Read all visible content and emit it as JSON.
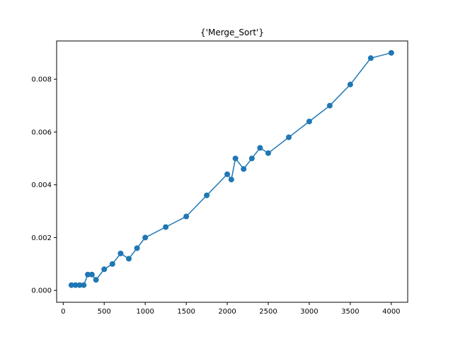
{
  "chart_data": {
    "type": "line",
    "title": "{'Merge_Sort'}",
    "xlabel": "",
    "ylabel": "",
    "xlim": [
      -80,
      4200
    ],
    "ylim": [
      -0.00045,
      0.00945
    ],
    "x_ticks": [
      0,
      500,
      1000,
      1500,
      2000,
      2500,
      3000,
      3500,
      4000
    ],
    "x_tick_labels": [
      "0",
      "500",
      "1000",
      "1500",
      "2000",
      "2500",
      "3000",
      "3500",
      "4000"
    ],
    "y_ticks": [
      0.0,
      0.002,
      0.004,
      0.006,
      0.008
    ],
    "y_tick_labels": [
      "0.000",
      "0.002",
      "0.004",
      "0.006",
      "0.008"
    ],
    "grid": false,
    "series": [
      {
        "color": "#1f77b4",
        "marker": "circle",
        "points": [
          [
            100,
            0.0002
          ],
          [
            150,
            0.0002
          ],
          [
            200,
            0.0002
          ],
          [
            250,
            0.0002
          ],
          [
            300,
            0.0006
          ],
          [
            350,
            0.0006
          ],
          [
            400,
            0.0004
          ],
          [
            500,
            0.0008
          ],
          [
            600,
            0.001
          ],
          [
            700,
            0.0014
          ],
          [
            800,
            0.0012
          ],
          [
            900,
            0.0016
          ],
          [
            1000,
            0.002
          ],
          [
            1250,
            0.0024
          ],
          [
            1500,
            0.0028
          ],
          [
            1750,
            0.0036
          ],
          [
            2000,
            0.0044
          ],
          [
            2050,
            0.0042
          ],
          [
            2100,
            0.005
          ],
          [
            2200,
            0.0046
          ],
          [
            2300,
            0.005
          ],
          [
            2400,
            0.0054
          ],
          [
            2500,
            0.0052
          ],
          [
            2750,
            0.0058
          ],
          [
            3000,
            0.0064
          ],
          [
            3250,
            0.007
          ],
          [
            3500,
            0.0078
          ],
          [
            3750,
            0.0088
          ],
          [
            4000,
            0.009
          ]
        ]
      }
    ]
  }
}
